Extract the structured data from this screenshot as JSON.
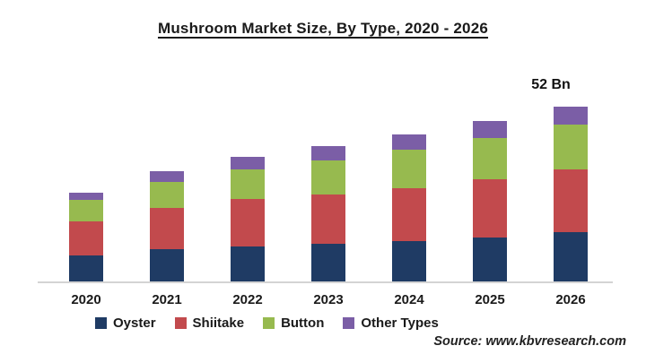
{
  "title": "Mushroom Market Size, By Type, 2020 - 2026",
  "source_note": "Source: www.kbvresearch.com",
  "colors": {
    "oyster": "#1F3B64",
    "shiitake": "#C24A4D",
    "button": "#97BA4F",
    "other_types": "#7B5EA6",
    "axis_line": "#D4D4D4",
    "text": "#1A1A1A"
  },
  "chart_data": {
    "type": "bar",
    "stacked": true,
    "title": "Mushroom Market Size, By Type, 2020 - 2026",
    "categories": [
      "2020",
      "2021",
      "2022",
      "2023",
      "2024",
      "2025",
      "2026"
    ],
    "unit": "Bn",
    "series": [
      {
        "name": "Oyster",
        "color": "#1F3B64",
        "values": [
          7.7,
          9.6,
          10.4,
          11.1,
          12.0,
          13.1,
          14.7
        ]
      },
      {
        "name": "Shiitake",
        "color": "#C24A4D",
        "values": [
          10.1,
          12.2,
          14.1,
          14.7,
          15.8,
          17.3,
          18.7
        ]
      },
      {
        "name": "Button",
        "color": "#97BA4F",
        "values": [
          6.4,
          7.8,
          8.9,
          10.2,
          11.5,
          12.2,
          13.3
        ]
      },
      {
        "name": "Other Types",
        "color": "#7B5EA6",
        "values": [
          2.1,
          3.3,
          3.7,
          4.3,
          4.5,
          5.1,
          5.3
        ]
      }
    ],
    "totals": [
      26.3,
      32.9,
      37.1,
      40.3,
      43.8,
      47.7,
      52.0
    ],
    "annotation": {
      "text": "52 Bn",
      "category": "2026"
    },
    "xlabel": "",
    "ylabel": "",
    "ylim": [
      0,
      52
    ],
    "y_axis_visible": false,
    "grid": false,
    "legend_position": "bottom"
  }
}
